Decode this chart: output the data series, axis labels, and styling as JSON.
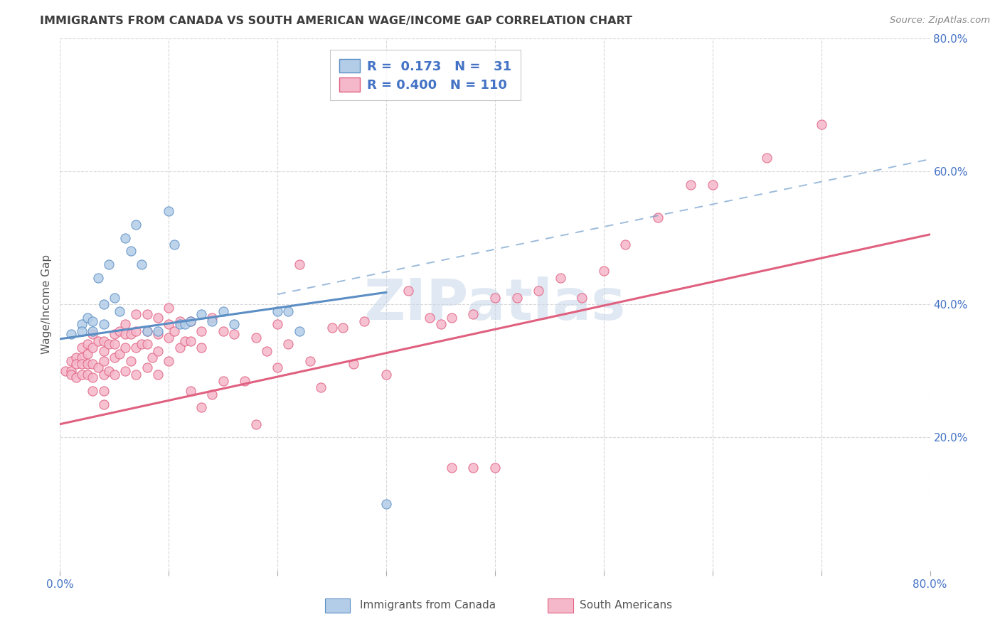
{
  "title": "IMMIGRANTS FROM CANADA VS SOUTH AMERICAN WAGE/INCOME GAP CORRELATION CHART",
  "source": "Source: ZipAtlas.com",
  "ylabel": "Wage/Income Gap",
  "x_min": 0.0,
  "x_max": 0.8,
  "y_min": 0.0,
  "y_max": 0.8,
  "y_ticks_right": [
    0.2,
    0.4,
    0.6,
    0.8
  ],
  "y_tick_labels_right": [
    "20.0%",
    "40.0%",
    "60.0%",
    "80.0%"
  ],
  "canada_color": "#b3cde8",
  "canada_edge_color": "#5b8ec4",
  "south_america_color": "#f5b8cb",
  "south_america_edge_color": "#e06080",
  "canada_R": "0.173",
  "canada_N": "31",
  "south_america_R": "0.400",
  "south_america_N": "110",
  "legend_label_canada": "Immigrants from Canada",
  "legend_label_south": "South Americans",
  "canada_line_x": [
    0.0,
    0.3
  ],
  "canada_line_y": [
    0.348,
    0.418
  ],
  "south_line_x": [
    0.0,
    0.8
  ],
  "south_line_y": [
    0.22,
    0.505
  ],
  "dashed_line_x": [
    0.2,
    0.8
  ],
  "dashed_line_y": [
    0.415,
    0.618
  ],
  "canada_scatter_x": [
    0.01,
    0.02,
    0.02,
    0.025,
    0.03,
    0.03,
    0.035,
    0.04,
    0.04,
    0.045,
    0.05,
    0.055,
    0.06,
    0.065,
    0.07,
    0.075,
    0.08,
    0.09,
    0.1,
    0.105,
    0.11,
    0.115,
    0.12,
    0.13,
    0.14,
    0.15,
    0.16,
    0.2,
    0.21,
    0.22,
    0.3
  ],
  "canada_scatter_y": [
    0.355,
    0.37,
    0.36,
    0.38,
    0.375,
    0.36,
    0.44,
    0.4,
    0.37,
    0.46,
    0.41,
    0.39,
    0.5,
    0.48,
    0.52,
    0.46,
    0.36,
    0.36,
    0.54,
    0.49,
    0.37,
    0.37,
    0.375,
    0.385,
    0.375,
    0.39,
    0.37,
    0.39,
    0.39,
    0.36,
    0.1
  ],
  "south_america_scatter_x": [
    0.005,
    0.01,
    0.01,
    0.01,
    0.015,
    0.015,
    0.015,
    0.02,
    0.02,
    0.02,
    0.02,
    0.025,
    0.025,
    0.025,
    0.025,
    0.03,
    0.03,
    0.03,
    0.03,
    0.03,
    0.035,
    0.035,
    0.04,
    0.04,
    0.04,
    0.04,
    0.04,
    0.04,
    0.045,
    0.045,
    0.05,
    0.05,
    0.05,
    0.05,
    0.055,
    0.055,
    0.06,
    0.06,
    0.06,
    0.06,
    0.065,
    0.065,
    0.07,
    0.07,
    0.07,
    0.07,
    0.075,
    0.08,
    0.08,
    0.08,
    0.08,
    0.085,
    0.09,
    0.09,
    0.09,
    0.09,
    0.1,
    0.1,
    0.1,
    0.1,
    0.105,
    0.11,
    0.11,
    0.115,
    0.12,
    0.12,
    0.12,
    0.13,
    0.13,
    0.13,
    0.14,
    0.14,
    0.15,
    0.15,
    0.16,
    0.17,
    0.18,
    0.18,
    0.19,
    0.2,
    0.2,
    0.21,
    0.22,
    0.23,
    0.24,
    0.25,
    0.26,
    0.27,
    0.28,
    0.3,
    0.32,
    0.34,
    0.36,
    0.38,
    0.4,
    0.42,
    0.44,
    0.46,
    0.48,
    0.5,
    0.52,
    0.55,
    0.58,
    0.6,
    0.65,
    0.7,
    0.35,
    0.36,
    0.38,
    0.4
  ],
  "south_america_scatter_y": [
    0.3,
    0.315,
    0.3,
    0.295,
    0.32,
    0.31,
    0.29,
    0.335,
    0.32,
    0.31,
    0.295,
    0.34,
    0.325,
    0.31,
    0.295,
    0.355,
    0.335,
    0.31,
    0.29,
    0.27,
    0.345,
    0.305,
    0.345,
    0.33,
    0.315,
    0.295,
    0.27,
    0.25,
    0.34,
    0.3,
    0.355,
    0.34,
    0.32,
    0.295,
    0.36,
    0.325,
    0.37,
    0.355,
    0.335,
    0.3,
    0.355,
    0.315,
    0.385,
    0.36,
    0.335,
    0.295,
    0.34,
    0.385,
    0.36,
    0.34,
    0.305,
    0.32,
    0.38,
    0.355,
    0.33,
    0.295,
    0.395,
    0.37,
    0.35,
    0.315,
    0.36,
    0.375,
    0.335,
    0.345,
    0.375,
    0.345,
    0.27,
    0.36,
    0.335,
    0.245,
    0.38,
    0.265,
    0.36,
    0.285,
    0.355,
    0.285,
    0.35,
    0.22,
    0.33,
    0.37,
    0.305,
    0.34,
    0.46,
    0.315,
    0.275,
    0.365,
    0.365,
    0.31,
    0.375,
    0.295,
    0.42,
    0.38,
    0.38,
    0.385,
    0.41,
    0.41,
    0.42,
    0.44,
    0.41,
    0.45,
    0.49,
    0.53,
    0.58,
    0.58,
    0.62,
    0.67,
    0.37,
    0.155,
    0.155,
    0.155
  ],
  "background_color": "#ffffff",
  "grid_color": "#d8d8d8",
  "text_color_blue": "#4472c4",
  "title_color": "#3d3d3d",
  "watermark_color": "#c8d8ea",
  "watermark_alpha": 0.55
}
